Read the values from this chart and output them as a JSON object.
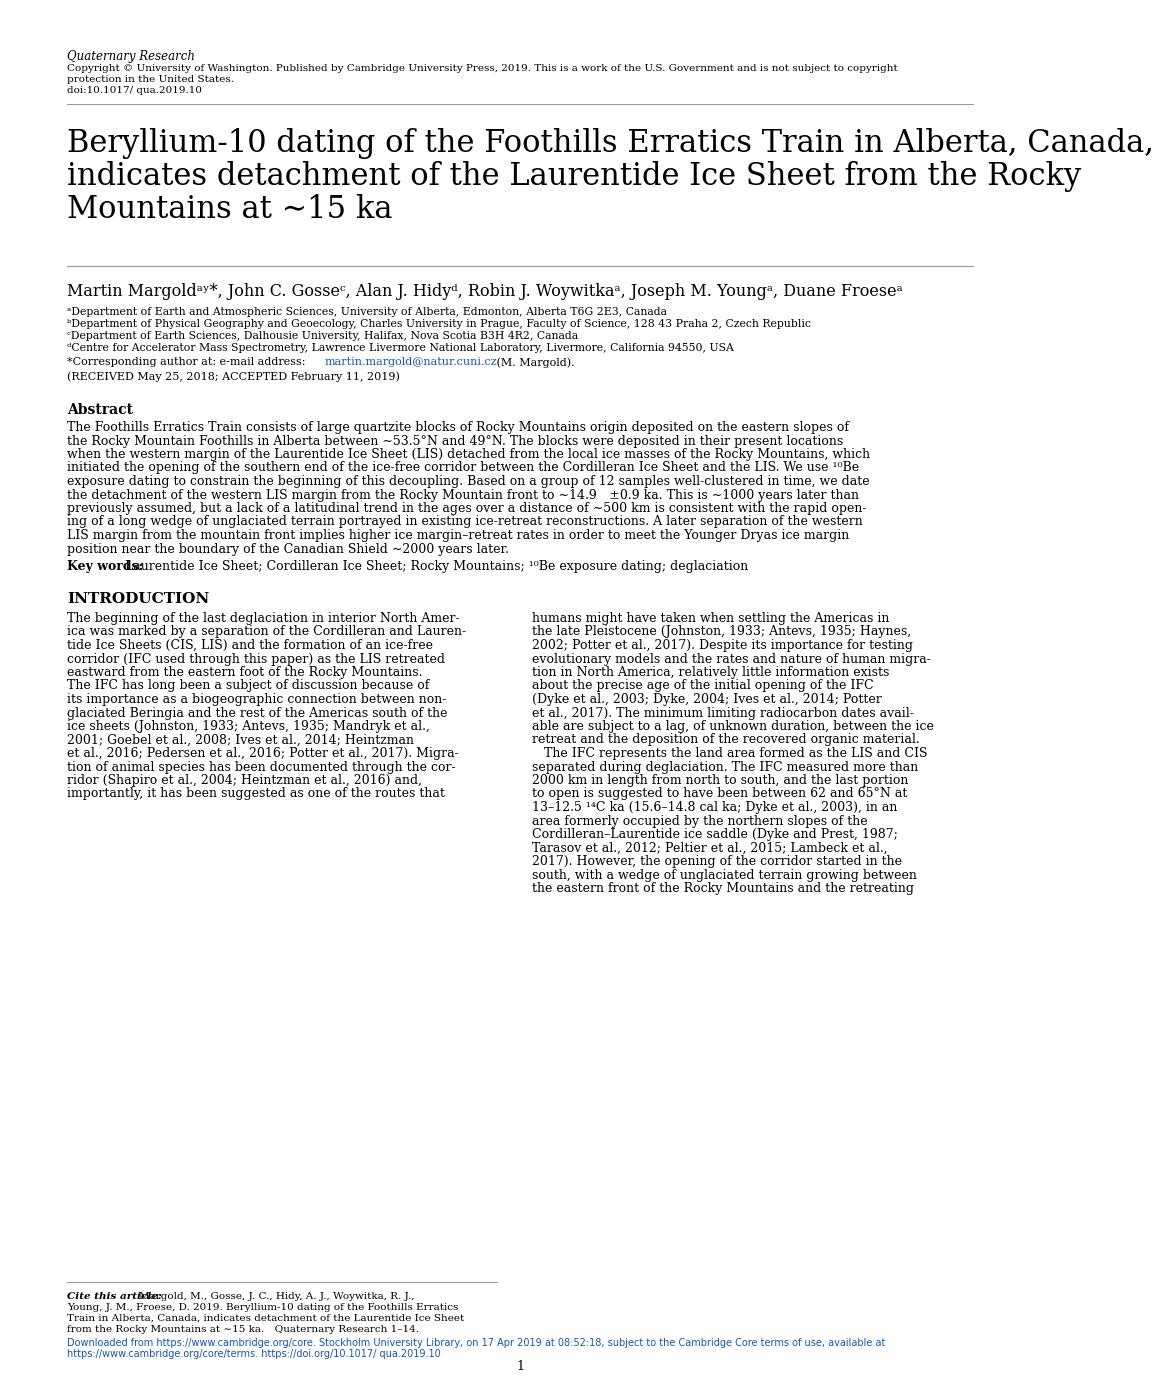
{
  "bg_color": "#ffffff",
  "journal_name": "Quaternary Research",
  "copyright_line1": "Copyright © University of Washington. Published by Cambridge University Press, 2019. This is a work of the U.S. Government and is not subject to copyright",
  "copyright_line2": "protection in the United States.",
  "doi": "doi:10.1017/ qua.2019.10",
  "title_line1": "Beryllium-10 dating of the Foothills Erratics Train in Alberta, Canada,",
  "title_line2": "indicates detachment of the Laurentide Ice Sheet from the Rocky",
  "title_line3": "Mountains at ∼15 ka",
  "authors": "Martin Margoldᵃʸ*, John C. Gosseᶜ, Alan J. Hidyᵈ, Robin J. Woywitkaᵃ, Joseph M. Youngᵃ, Duane Froeseᵃ",
  "affil_a": "ᵃDepartment of Earth and Atmospheric Sciences, University of Alberta, Edmonton, Alberta T6G 2E3, Canada",
  "affil_b": "ᵇDepartment of Physical Geography and Geoecology, Charles University in Prague, Faculty of Science, 128 43 Praha 2, Czech Republic",
  "affil_c": "ᶜDepartment of Earth Sciences, Dalhousie University, Halifax, Nova Scotia B3H 4R2, Canada",
  "affil_d": "ᵈCentre for Accelerator Mass Spectrometry, Lawrence Livermore National Laboratory, Livermore, California 94550, USA",
  "corresponding": "*Corresponding author at: e-mail address: martin.margold@natur.cuni.cz (M. Margold).",
  "received": "(RECEIVED May 25, 2018; ACCEPTED February 11, 2019)",
  "abstract_title": "Abstract",
  "abstract_text": "The Foothills Erratics Train consists of large quartzite blocks of Rocky Mountains origin deposited on the eastern slopes of the Rocky Mountain Foothills in Alberta between ∼53.5°N and 49°N. The blocks were deposited in their present locations when the western margin of the Laurentide Ice Sheet (LIS) detached from the local ice masses of the Rocky Mountains, which initiated the opening of the southern end of the ice-free corridor between the Cordilleran Ice Sheet and the LIS. We use ¹⁰Be exposure dating to constrain the beginning of this decoupling. Based on a group of 12 samples well-clustered in time, we date the detachment of the western LIS margin from the Rocky Mountain front to ∼14.9 ±0.9 ka. This is ∼1000 years later than previously assumed, but a lack of a latitudinal trend in the ages over a distance of ∼500 km is consistent with the rapid opening of a long wedge of unglaciated terrain portrayed in existing ice-retreat reconstructions. A later separation of the western LIS margin from the mountain front implies higher ice margin–retreat rates in order to meet the Younger Dryas ice margin position near the boundary of the Canadian Shield ∼2000 years later.",
  "keywords_label": "Key words:",
  "keywords_text": "Laurentide Ice Sheet; Cordilleran Ice Sheet; Rocky Mountains; ¹⁰Be exposure dating; deglaciation",
  "intro_title": "INTRODUCTION",
  "intro_col1_lines": [
    "The beginning of the last deglaciation in interior North Amer-",
    "ica was marked by a separation of the Cordilleran and Lauren-",
    "tide Ice Sheets (CIS, LIS) and the formation of an ice-free",
    "corridor (IFC used through this paper) as the LIS retreated",
    "eastward from the eastern foot of the Rocky Mountains.",
    "The IFC has long been a subject of discussion because of",
    "its importance as a biogeographic connection between non-",
    "glaciated Beringia and the rest of the Americas south of the",
    "ice sheets (Johnston, 1933; Antevs, 1935; Mandryk et al.,",
    "2001; Goebel et al., 2008; Ives et al., 2014; Heintzman",
    "et al., 2016; Pedersen et al., 2016; Potter et al., 2017). Migra-",
    "tion of animal species has been documented through the cor-",
    "ridor (Shapiro et al., 2004; Heintzman et al., 2016) and,",
    "importantly, it has been suggested as one of the routes that"
  ],
  "intro_col2_lines": [
    "humans might have taken when settling the Americas in",
    "the late Pleistocene (Johnston, 1933; Antevs, 1935; Haynes,",
    "2002; Potter et al., 2017). Despite its importance for testing",
    "evolutionary models and the rates and nature of human migra-",
    "tion in North America, relatively little information exists",
    "about the precise age of the initial opening of the IFC",
    "(Dyke et al., 2003; Dyke, 2004; Ives et al., 2014; Potter",
    "et al., 2017). The minimum limiting radiocarbon dates avail-",
    "able are subject to a lag, of unknown duration, between the ice",
    "retreat and the deposition of the recovered organic material.",
    "   The IFC represents the land area formed as the LIS and CIS",
    "separated during deglaciation. The IFC measured more than",
    "2000 km in length from north to south, and the last portion",
    "to open is suggested to have been between 62 and 65°N at",
    "13–12.5 ¹⁴C ka (15.6–14.8 cal ka; Dyke et al., 2003), in an",
    "area formerly occupied by the northern slopes of the",
    "Cordilleran–Laurentide ice saddle (Dyke and Prest, 1987;",
    "Tarasov et al., 2012; Peltier et al., 2015; Lambeck et al.,",
    "2017). However, the opening of the corridor started in the",
    "south, with a wedge of unglaciated terrain growing between",
    "the eastern front of the Rocky Mountains and the retreating"
  ],
  "abstract_lines": [
    "The Foothills Erratics Train consists of large quartzite blocks of Rocky Mountains origin deposited on the eastern slopes of",
    "the Rocky Mountain Foothills in Alberta between ∼53.5°N and 49°N. The blocks were deposited in their present locations",
    "when the western margin of the Laurentide Ice Sheet (LIS) detached from the local ice masses of the Rocky Mountains, which",
    "initiated the opening of the southern end of the ice-free corridor between the Cordilleran Ice Sheet and the LIS. We use ¹⁰Be",
    "exposure dating to constrain the beginning of this decoupling. Based on a group of 12 samples well-clustered in time, we date",
    "the detachment of the western LIS margin from the Rocky Mountain front to ∼14.9 ±0.9 ka. This is ∼1000 years later than",
    "previously assumed, but a lack of a latitudinal trend in the ages over a distance of ∼500 km is consistent with the rapid open-",
    "ing of a long wedge of unglaciated terrain portrayed in existing ice-retreat reconstructions. A later separation of the western",
    "LIS margin from the mountain front implies higher ice margin–retreat rates in order to meet the Younger Dryas ice margin",
    "position near the boundary of the Canadian Shield ∼2000 years later."
  ],
  "cite_label": "Cite this article:",
  "cite_body": "Margold, M., Gosse, J. C., Hidy, A. J., Woywitka, R. J., Young, J. M., Froese, D. 2019. Beryllium-10 dating of the Foothills Erratics Train in Alberta, Canada, indicates detachment of the Laurentide Ice Sheet from the Rocky Mountains at ∼15 ka. Quaternary Research 1–14.",
  "cite_lines": [
    "Margold, M., Gosse, J. C., Hidy, A. J., Woywitka, R. J.,",
    "Young, J. M., Froese, D. 2019. Beryllium-10 dating of the Foothills Erratics",
    "Train in Alberta, Canada, indicates detachment of the Laurentide Ice Sheet",
    "from the Rocky Mountains at ∼15 ka. Quaternary Research 1–14."
  ],
  "footer_line1": "Downloaded from https://www.cambridge.org/core. Stockholm University Library, on 17 Apr 2019 at 08:52:18, subject to the Cambridge Core terms of use, available at",
  "footer_line2": "https://www.cambridge.org/core/terms. https://doi.org/10.1017/ qua.2019.10",
  "page_number": "1",
  "link_color": "#1155cc"
}
